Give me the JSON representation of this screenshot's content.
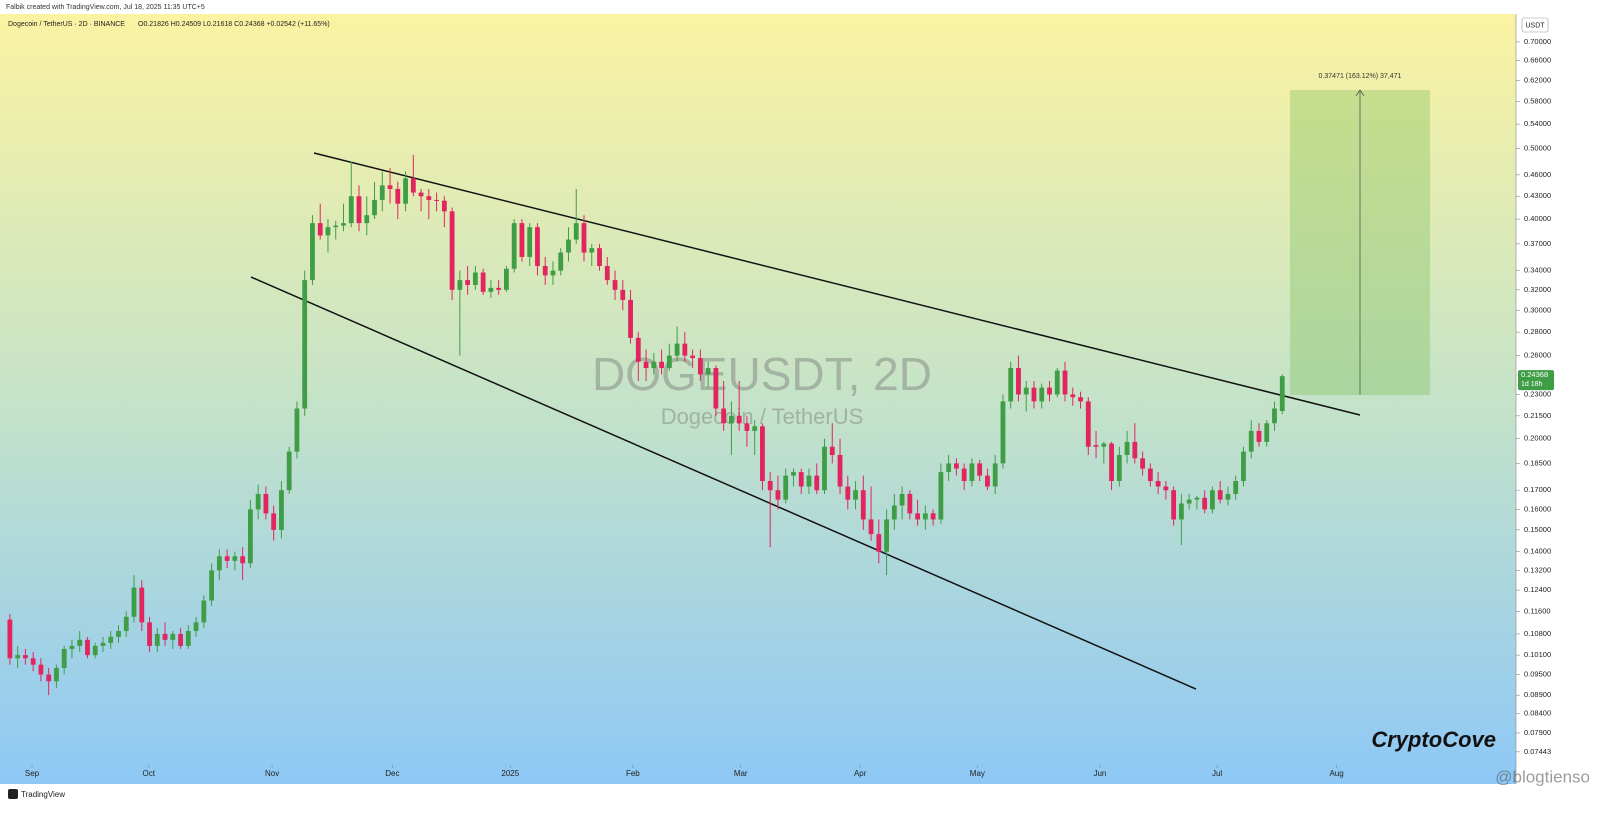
{
  "page": {
    "credit": "Falbik created with TradingView.com, Jul 18, 2025 11:35 UTC+5",
    "footer_logo": "TradingView",
    "brand": "CryptoCove",
    "source_watermark": "@blogtienso"
  },
  "chart_data": {
    "type": "candlestick",
    "legend": "Dogecoin / TetherUS · 2D · BINANCE",
    "ohlc": "O0.21826 H0.24509 L0.21618 C0.24368 +0.02542 (+11.65%)",
    "watermark": "DOGEUSDT, 2D",
    "watermark_sub": "Dogecoin / TetherUS",
    "axis_unit": "USDT",
    "last_price": 0.24368,
    "countdown": "1d 18h",
    "projection_label": "0.37471 (163.12%) 37,471",
    "log_scale": true,
    "up_color": "#3f9e45",
    "down_color": "#e2245f",
    "ylim": [
      0.0714,
      0.7644
    ],
    "xlim": [
      -0.5,
      194
    ],
    "yticks": [
      {
        "value": 0.7,
        "label": "0.70000"
      },
      {
        "value": 0.66,
        "label": "0.66000"
      },
      {
        "value": 0.62,
        "label": "0.62000"
      },
      {
        "value": 0.58,
        "label": "0.58000"
      },
      {
        "value": 0.54,
        "label": "0.54000"
      },
      {
        "value": 0.5,
        "label": "0.50000"
      },
      {
        "value": 0.46,
        "label": "0.46000"
      },
      {
        "value": 0.43,
        "label": "0.43000"
      },
      {
        "value": 0.4,
        "label": "0.40000"
      },
      {
        "value": 0.37,
        "label": "0.37000"
      },
      {
        "value": 0.34,
        "label": "0.34000"
      },
      {
        "value": 0.32,
        "label": "0.32000"
      },
      {
        "value": 0.3,
        "label": "0.30000"
      },
      {
        "value": 0.28,
        "label": "0.28000"
      },
      {
        "value": 0.26,
        "label": "0.26000"
      },
      {
        "value": 0.23,
        "label": "0.23000"
      },
      {
        "value": 0.215,
        "label": "0.21500"
      },
      {
        "value": 0.2,
        "label": "0.20000"
      },
      {
        "value": 0.185,
        "label": "0.18500"
      },
      {
        "value": 0.17,
        "label": "0.17000"
      },
      {
        "value": 0.16,
        "label": "0.16000"
      },
      {
        "value": 0.15,
        "label": "0.15000"
      },
      {
        "value": 0.14,
        "label": "0.14000"
      },
      {
        "value": 0.132,
        "label": "0.13200"
      },
      {
        "value": 0.124,
        "label": "0.12400"
      },
      {
        "value": 0.116,
        "label": "0.11600"
      },
      {
        "value": 0.108,
        "label": "0.10800"
      },
      {
        "value": 0.101,
        "label": "0.10100"
      },
      {
        "value": 0.095,
        "label": "0.09500"
      },
      {
        "value": 0.089,
        "label": "0.08900"
      },
      {
        "value": 0.084,
        "label": "0.08400"
      },
      {
        "value": 0.079,
        "label": "0.07900"
      },
      0.07443
    ],
    "xticks": [
      {
        "value": 2.85,
        "label": "Sep"
      },
      {
        "value": 17.9,
        "label": "Oct"
      },
      {
        "value": 33.8,
        "label": "Nov"
      },
      {
        "value": 49.3,
        "label": "Dec"
      },
      {
        "value": 64.5,
        "label": "2025"
      },
      {
        "value": 80.3,
        "label": "Feb"
      },
      {
        "value": 94.2,
        "label": "Mar"
      },
      {
        "value": 109.6,
        "label": "Apr"
      },
      {
        "value": 124.7,
        "label": "May"
      },
      {
        "value": 140.5,
        "label": "Jun"
      },
      {
        "value": 155.6,
        "label": "Jul"
      },
      {
        "value": 171.0,
        "label": "Aug"
      }
    ],
    "candles": [
      [
        0.113,
        0.115,
        0.098,
        0.1
      ],
      [
        0.1,
        0.104,
        0.097,
        0.101
      ],
      [
        0.101,
        0.103,
        0.098,
        0.1
      ],
      [
        0.1,
        0.102,
        0.096,
        0.098
      ],
      [
        0.098,
        0.1,
        0.093,
        0.095
      ],
      [
        0.095,
        0.097,
        0.089,
        0.093
      ],
      [
        0.093,
        0.098,
        0.091,
        0.097
      ],
      [
        0.097,
        0.104,
        0.095,
        0.103
      ],
      [
        0.103,
        0.106,
        0.1,
        0.104
      ],
      [
        0.104,
        0.109,
        0.102,
        0.106
      ],
      [
        0.106,
        0.107,
        0.1,
        0.101
      ],
      [
        0.101,
        0.105,
        0.1,
        0.104
      ],
      [
        0.104,
        0.107,
        0.102,
        0.105
      ],
      [
        0.105,
        0.109,
        0.103,
        0.107
      ],
      [
        0.107,
        0.111,
        0.105,
        0.109
      ],
      [
        0.109,
        0.116,
        0.107,
        0.114
      ],
      [
        0.114,
        0.13,
        0.112,
        0.125
      ],
      [
        0.125,
        0.128,
        0.109,
        0.112
      ],
      [
        0.112,
        0.114,
        0.102,
        0.104
      ],
      [
        0.104,
        0.11,
        0.102,
        0.108
      ],
      [
        0.108,
        0.112,
        0.104,
        0.106
      ],
      [
        0.106,
        0.109,
        0.103,
        0.108
      ],
      [
        0.108,
        0.11,
        0.103,
        0.104
      ],
      [
        0.104,
        0.111,
        0.103,
        0.109
      ],
      [
        0.109,
        0.114,
        0.107,
        0.112
      ],
      [
        0.112,
        0.122,
        0.11,
        0.12
      ],
      [
        0.12,
        0.135,
        0.118,
        0.132
      ],
      [
        0.132,
        0.141,
        0.128,
        0.138
      ],
      [
        0.138,
        0.141,
        0.133,
        0.136
      ],
      [
        0.136,
        0.14,
        0.132,
        0.138
      ],
      [
        0.138,
        0.142,
        0.128,
        0.135
      ],
      [
        0.135,
        0.165,
        0.133,
        0.16
      ],
      [
        0.16,
        0.173,
        0.155,
        0.168
      ],
      [
        0.168,
        0.172,
        0.155,
        0.158
      ],
      [
        0.158,
        0.162,
        0.145,
        0.15
      ],
      [
        0.15,
        0.175,
        0.146,
        0.17
      ],
      [
        0.17,
        0.195,
        0.168,
        0.192
      ],
      [
        0.192,
        0.225,
        0.188,
        0.22
      ],
      [
        0.22,
        0.34,
        0.215,
        0.33
      ],
      [
        0.33,
        0.405,
        0.325,
        0.395
      ],
      [
        0.395,
        0.42,
        0.375,
        0.38
      ],
      [
        0.38,
        0.4,
        0.36,
        0.39
      ],
      [
        0.39,
        0.398,
        0.375,
        0.392
      ],
      [
        0.392,
        0.42,
        0.385,
        0.395
      ],
      [
        0.395,
        0.48,
        0.39,
        0.43
      ],
      [
        0.43,
        0.445,
        0.385,
        0.395
      ],
      [
        0.395,
        0.43,
        0.38,
        0.405
      ],
      [
        0.405,
        0.45,
        0.4,
        0.425
      ],
      [
        0.425,
        0.465,
        0.41,
        0.445
      ],
      [
        0.445,
        0.47,
        0.42,
        0.44
      ],
      [
        0.44,
        0.45,
        0.4,
        0.42
      ],
      [
        0.42,
        0.465,
        0.41,
        0.455
      ],
      [
        0.455,
        0.49,
        0.43,
        0.435
      ],
      [
        0.435,
        0.44,
        0.41,
        0.43
      ],
      [
        0.43,
        0.44,
        0.4,
        0.425
      ],
      [
        0.425,
        0.435,
        0.41,
        0.424
      ],
      [
        0.424,
        0.43,
        0.39,
        0.41
      ],
      [
        0.41,
        0.415,
        0.31,
        0.32
      ],
      [
        0.32,
        0.34,
        0.26,
        0.33
      ],
      [
        0.33,
        0.345,
        0.315,
        0.325
      ],
      [
        0.325,
        0.345,
        0.32,
        0.338
      ],
      [
        0.338,
        0.342,
        0.315,
        0.318
      ],
      [
        0.318,
        0.33,
        0.312,
        0.322
      ],
      [
        0.322,
        0.33,
        0.315,
        0.32
      ],
      [
        0.32,
        0.345,
        0.318,
        0.342
      ],
      [
        0.342,
        0.4,
        0.338,
        0.395
      ],
      [
        0.395,
        0.4,
        0.35,
        0.355
      ],
      [
        0.355,
        0.395,
        0.345,
        0.39
      ],
      [
        0.39,
        0.395,
        0.335,
        0.345
      ],
      [
        0.345,
        0.355,
        0.325,
        0.335
      ],
      [
        0.335,
        0.35,
        0.325,
        0.34
      ],
      [
        0.34,
        0.365,
        0.335,
        0.36
      ],
      [
        0.36,
        0.39,
        0.35,
        0.375
      ],
      [
        0.375,
        0.44,
        0.37,
        0.395
      ],
      [
        0.395,
        0.405,
        0.35,
        0.36
      ],
      [
        0.36,
        0.37,
        0.345,
        0.365
      ],
      [
        0.365,
        0.37,
        0.34,
        0.345
      ],
      [
        0.345,
        0.355,
        0.325,
        0.33
      ],
      [
        0.33,
        0.34,
        0.31,
        0.32
      ],
      [
        0.32,
        0.33,
        0.3,
        0.31
      ],
      [
        0.31,
        0.32,
        0.27,
        0.275
      ],
      [
        0.275,
        0.28,
        0.24,
        0.255
      ],
      [
        0.255,
        0.265,
        0.24,
        0.25
      ],
      [
        0.25,
        0.262,
        0.245,
        0.255
      ],
      [
        0.255,
        0.265,
        0.245,
        0.25
      ],
      [
        0.25,
        0.27,
        0.248,
        0.26
      ],
      [
        0.26,
        0.285,
        0.255,
        0.27
      ],
      [
        0.27,
        0.28,
        0.255,
        0.26
      ],
      [
        0.26,
        0.265,
        0.25,
        0.258
      ],
      [
        0.258,
        0.265,
        0.24,
        0.245
      ],
      [
        0.245,
        0.255,
        0.235,
        0.25
      ],
      [
        0.25,
        0.252,
        0.215,
        0.22
      ],
      [
        0.22,
        0.24,
        0.205,
        0.21
      ],
      [
        0.21,
        0.225,
        0.19,
        0.215
      ],
      [
        0.215,
        0.24,
        0.205,
        0.21
      ],
      [
        0.21,
        0.215,
        0.195,
        0.205
      ],
      [
        0.205,
        0.212,
        0.19,
        0.208
      ],
      [
        0.208,
        0.21,
        0.17,
        0.175
      ],
      [
        0.175,
        0.18,
        0.142,
        0.17
      ],
      [
        0.17,
        0.178,
        0.16,
        0.165
      ],
      [
        0.165,
        0.182,
        0.163,
        0.178
      ],
      [
        0.178,
        0.182,
        0.172,
        0.18
      ],
      [
        0.18,
        0.182,
        0.168,
        0.172
      ],
      [
        0.172,
        0.182,
        0.168,
        0.178
      ],
      [
        0.178,
        0.185,
        0.168,
        0.17
      ],
      [
        0.17,
        0.2,
        0.168,
        0.195
      ],
      [
        0.195,
        0.21,
        0.185,
        0.19
      ],
      [
        0.19,
        0.2,
        0.168,
        0.172
      ],
      [
        0.172,
        0.178,
        0.16,
        0.165
      ],
      [
        0.165,
        0.175,
        0.16,
        0.17
      ],
      [
        0.17,
        0.178,
        0.15,
        0.155
      ],
      [
        0.155,
        0.172,
        0.145,
        0.148
      ],
      [
        0.148,
        0.155,
        0.135,
        0.14
      ],
      [
        0.14,
        0.16,
        0.13,
        0.155
      ],
      [
        0.155,
        0.168,
        0.15,
        0.162
      ],
      [
        0.162,
        0.172,
        0.155,
        0.168
      ],
      [
        0.168,
        0.17,
        0.155,
        0.158
      ],
      [
        0.158,
        0.165,
        0.152,
        0.155
      ],
      [
        0.155,
        0.162,
        0.15,
        0.158
      ],
      [
        0.158,
        0.16,
        0.152,
        0.155
      ],
      [
        0.155,
        0.185,
        0.153,
        0.18
      ],
      [
        0.18,
        0.19,
        0.175,
        0.185
      ],
      [
        0.185,
        0.188,
        0.178,
        0.182
      ],
      [
        0.182,
        0.185,
        0.17,
        0.175
      ],
      [
        0.175,
        0.188,
        0.172,
        0.185
      ],
      [
        0.185,
        0.187,
        0.175,
        0.178
      ],
      [
        0.178,
        0.182,
        0.17,
        0.172
      ],
      [
        0.172,
        0.19,
        0.168,
        0.185
      ],
      [
        0.185,
        0.23,
        0.182,
        0.225
      ],
      [
        0.225,
        0.255,
        0.22,
        0.25
      ],
      [
        0.25,
        0.26,
        0.225,
        0.23
      ],
      [
        0.23,
        0.24,
        0.218,
        0.235
      ],
      [
        0.235,
        0.24,
        0.22,
        0.225
      ],
      [
        0.225,
        0.238,
        0.22,
        0.235
      ],
      [
        0.235,
        0.24,
        0.225,
        0.23
      ],
      [
        0.23,
        0.25,
        0.228,
        0.248
      ],
      [
        0.248,
        0.255,
        0.225,
        0.23
      ],
      [
        0.23,
        0.235,
        0.222,
        0.228
      ],
      [
        0.228,
        0.232,
        0.22,
        0.225
      ],
      [
        0.225,
        0.228,
        0.19,
        0.195
      ],
      [
        0.196,
        0.205,
        0.188,
        0.195
      ],
      [
        0.195,
        0.198,
        0.185,
        0.197
      ],
      [
        0.197,
        0.198,
        0.17,
        0.175
      ],
      [
        0.175,
        0.195,
        0.172,
        0.19
      ],
      [
        0.19,
        0.205,
        0.185,
        0.198
      ],
      [
        0.198,
        0.21,
        0.185,
        0.188
      ],
      [
        0.188,
        0.192,
        0.178,
        0.182
      ],
      [
        0.182,
        0.185,
        0.172,
        0.175
      ],
      [
        0.175,
        0.18,
        0.168,
        0.172
      ],
      [
        0.172,
        0.175,
        0.165,
        0.17
      ],
      [
        0.17,
        0.172,
        0.152,
        0.155
      ],
      [
        0.155,
        0.168,
        0.143,
        0.163
      ],
      [
        0.163,
        0.168,
        0.16,
        0.165
      ],
      [
        0.165,
        0.167,
        0.16,
        0.166
      ],
      [
        0.166,
        0.17,
        0.158,
        0.16
      ],
      [
        0.16,
        0.172,
        0.158,
        0.17
      ],
      [
        0.17,
        0.175,
        0.163,
        0.165
      ],
      [
        0.165,
        0.172,
        0.162,
        0.168
      ],
      [
        0.168,
        0.178,
        0.165,
        0.175
      ],
      [
        0.175,
        0.195,
        0.172,
        0.192
      ],
      [
        0.192,
        0.212,
        0.188,
        0.205
      ],
      [
        0.205,
        0.21,
        0.195,
        0.198
      ],
      [
        0.198,
        0.212,
        0.195,
        0.21
      ],
      [
        0.21,
        0.225,
        0.205,
        0.22
      ],
      [
        0.21826,
        0.24509,
        0.21618,
        0.24368
      ]
    ]
  }
}
